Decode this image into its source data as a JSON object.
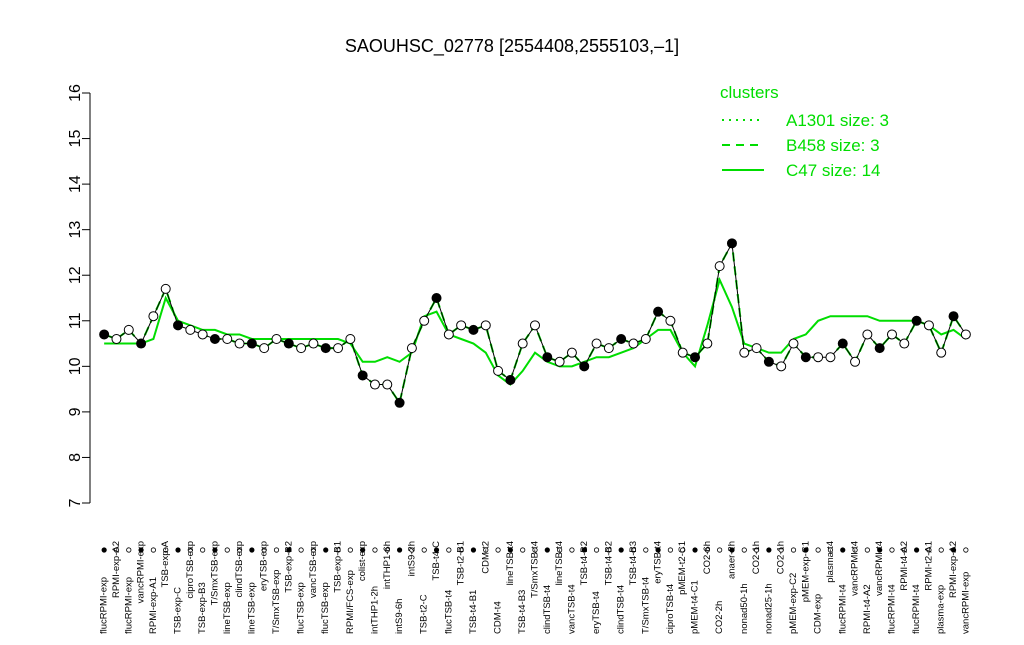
{
  "chart_data": {
    "type": "line",
    "title": "SAOUHSC_02778 [2554408,2555103,–1]",
    "ylim": [
      7,
      16
    ],
    "yticks": [
      7,
      8,
      9,
      10,
      11,
      12,
      13,
      14,
      15,
      16
    ],
    "color": "#000000",
    "categories": [
      "flucRPMI-exp",
      "RPMI-exp-A2",
      "flucRPMI-exp",
      "vancRPMI-exp",
      "RPMI-exp-A1",
      "TSB-exp-A",
      "TSB-exp-C",
      "ciproTSB-exp",
      "TSB-exp-B3",
      "T/SmxTSB-exp",
      "lineTSB-exp",
      "clindTSB-exp",
      "lineTSB-exp",
      "eryTSB-exp",
      "T/SmxTSB-exp",
      "TSB-exp-B2",
      "flucTSB-exp",
      "vancTSB-exp",
      "flucTSB-exp",
      "TSB-exp-B1",
      "RPMI/FCS-exp",
      "colist-exp",
      "intTHP1-2h",
      "intTHP1-6h",
      "intS9-6h",
      "intS9-2h",
      "TSB-t2-C",
      "TSB-t4-C",
      "flucTSB-t4",
      "TSB-t2-B1",
      "TSB-t4-B1",
      "CDM-t2",
      "CDM-t4",
      "lineTSB-t4",
      "TSB-t4-B3",
      "T/SmxTSB-t4",
      "clindTSB-t4",
      "lineTSB-t4",
      "vancTSB-t4",
      "TSB-t4-B2",
      "eryTSB-t4",
      "TSB-t4-B2",
      "clindTSB-t4",
      "TSB-t4-B3",
      "T/SmxTSB-t4",
      "eryTSB-t4",
      "ciproTSB-t4",
      "pMEM-t2-C1",
      "pMEM-t4-C1",
      "CO2-6h",
      "CO2-2h",
      "anaer-2h",
      "nonad50-1h",
      "CO2-1h",
      "nonad25-1h",
      "CO2-1h",
      "pMEM-exp-C2",
      "pMEM-exp-C1",
      "CDM-exp",
      "plasma-t4",
      "flucRPMI-t4",
      "vancRPMI-t4",
      "RPMI-t4-A2",
      "vancRPMI-t4",
      "flucRPMI-t4",
      "RPMI-t4-A2",
      "flucRPMI-t4",
      "RPMI-t2-A1",
      "plasma-exp",
      "RPMI-exp-A2",
      "vancRPMI-exp"
    ],
    "values": [
      10.7,
      10.6,
      10.8,
      10.5,
      11.1,
      11.7,
      10.9,
      10.8,
      10.7,
      10.6,
      10.6,
      10.5,
      10.5,
      10.4,
      10.6,
      10.5,
      10.4,
      10.5,
      10.4,
      10.4,
      10.6,
      9.8,
      9.6,
      9.6,
      9.2,
      10.4,
      11.0,
      11.5,
      10.7,
      10.9,
      10.8,
      10.9,
      9.9,
      9.7,
      10.5,
      10.9,
      10.2,
      10.1,
      10.3,
      10.0,
      10.5,
      10.4,
      10.6,
      10.5,
      10.6,
      11.2,
      11.0,
      10.3,
      10.2,
      10.5,
      12.2,
      12.7,
      10.3,
      10.4,
      10.1,
      10.0,
      10.5,
      10.2,
      10.2,
      10.2,
      10.5,
      10.1,
      10.7,
      10.4,
      10.7,
      10.5,
      11.0,
      10.9,
      10.3,
      11.1,
      10.7
    ],
    "legend_title": "clusters",
    "series": [
      {
        "name": "A1301 size: 3",
        "color": "#00dd00",
        "dash": "dotted",
        "values": [
          10.7,
          10.6,
          10.8,
          10.5,
          11.1,
          11.7,
          10.9,
          10.8,
          10.7,
          10.6,
          10.6,
          10.5,
          10.5,
          10.4,
          10.6,
          10.5,
          10.4,
          10.5,
          10.4,
          10.4,
          10.6,
          9.8,
          9.6,
          9.6,
          9.2,
          10.4,
          11.0,
          11.5,
          10.7,
          10.9,
          10.8,
          10.9,
          9.9,
          9.7,
          10.5,
          10.9,
          10.2,
          10.1,
          10.3,
          10.0,
          10.5,
          10.4,
          10.6,
          10.5,
          10.6,
          11.2,
          11.0,
          10.3,
          10.2,
          10.5,
          12.2,
          12.7,
          10.3,
          10.4,
          10.1,
          10.0,
          10.5,
          10.2,
          10.2,
          10.2,
          10.5,
          10.1,
          10.7,
          10.4,
          10.7,
          10.5,
          11.0,
          10.9,
          10.3,
          11.1,
          10.7
        ]
      },
      {
        "name": "B458 size: 3",
        "color": "#00dd00",
        "dash": "dashed",
        "values": [
          10.7,
          10.6,
          10.8,
          10.5,
          11.1,
          11.7,
          10.9,
          10.8,
          10.7,
          10.6,
          10.6,
          10.5,
          10.5,
          10.4,
          10.6,
          10.5,
          10.4,
          10.5,
          10.4,
          10.4,
          10.6,
          9.8,
          9.6,
          9.6,
          9.2,
          10.4,
          11.0,
          11.5,
          10.7,
          10.9,
          10.8,
          10.9,
          9.9,
          9.7,
          10.5,
          10.9,
          10.2,
          10.1,
          10.3,
          10.0,
          10.5,
          10.4,
          10.6,
          10.5,
          10.6,
          11.2,
          11.0,
          10.3,
          10.2,
          10.5,
          12.2,
          12.7,
          10.3,
          10.4,
          10.1,
          10.0,
          10.5,
          10.2,
          10.2,
          10.2,
          10.5,
          10.1,
          10.7,
          10.4,
          10.7,
          10.5,
          11.0,
          10.9,
          10.3,
          11.1,
          10.7
        ]
      },
      {
        "name": "C47 size: 14",
        "color": "#00dd00",
        "dash": "solid",
        "values": [
          10.5,
          10.5,
          10.5,
          10.5,
          10.6,
          11.5,
          11.0,
          10.9,
          10.8,
          10.8,
          10.7,
          10.7,
          10.6,
          10.6,
          10.6,
          10.6,
          10.6,
          10.6,
          10.6,
          10.6,
          10.5,
          10.1,
          10.1,
          10.2,
          10.1,
          10.3,
          11.1,
          11.2,
          10.7,
          10.6,
          10.5,
          10.3,
          9.8,
          9.6,
          9.9,
          10.3,
          10.1,
          10.0,
          10.0,
          10.1,
          10.2,
          10.2,
          10.3,
          10.4,
          10.6,
          10.8,
          10.8,
          10.3,
          10.0,
          10.9,
          11.9,
          11.3,
          10.5,
          10.4,
          10.3,
          10.3,
          10.6,
          10.7,
          11.0,
          11.1,
          11.1,
          11.1,
          11.1,
          11.0,
          11.0,
          11.0,
          11.0,
          10.9,
          10.7,
          10.8,
          10.6
        ]
      }
    ]
  }
}
